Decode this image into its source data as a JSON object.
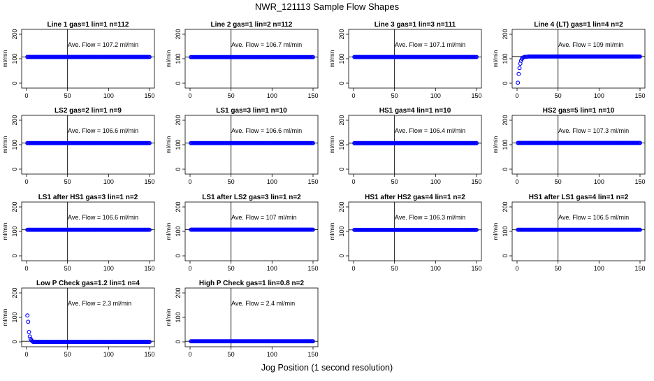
{
  "figure": {
    "title": "NWR_121113  Sample Flow Shapes",
    "xlabel": "Jog Position (1 second resolution)",
    "ylabel": "ml/min"
  },
  "chart_data": [
    {
      "type": "scatter",
      "title": "Line 1 gas=1 lin=1 n=112",
      "annotation": "Ave. Flow = 107.2  ml/min",
      "ref_value": 107.2,
      "xlim": [
        0,
        150
      ],
      "ylim": [
        0,
        200
      ],
      "xticks": [
        0,
        50,
        100,
        150
      ],
      "yticks": [
        0,
        100,
        200
      ],
      "vline": 50,
      "points": "flat",
      "color": "#0000ff"
    },
    {
      "type": "scatter",
      "title": "Line 2 gas=1 lin=2 n=112",
      "annotation": "Ave. Flow = 106.7  ml/min",
      "ref_value": 106.7,
      "xlim": [
        0,
        150
      ],
      "ylim": [
        0,
        200
      ],
      "xticks": [
        0,
        50,
        100,
        150
      ],
      "yticks": [
        0,
        100,
        200
      ],
      "vline": 50,
      "points": "flat",
      "color": "#0000ff"
    },
    {
      "type": "scatter",
      "title": "Line 3 gas=1 lin=3 n=111",
      "annotation": "Ave. Flow = 107.1  ml/min",
      "ref_value": 107.1,
      "xlim": [
        0,
        150
      ],
      "ylim": [
        0,
        200
      ],
      "xticks": [
        0,
        50,
        100,
        150
      ],
      "yticks": [
        0,
        100,
        200
      ],
      "vline": 50,
      "points": "flat",
      "color": "#0000ff"
    },
    {
      "type": "scatter",
      "title": "Line 4 (LT) gas=1 lin=4 n=2",
      "annotation": "Ave. Flow = 109  ml/min",
      "ref_value": 109,
      "xlim": [
        0,
        150
      ],
      "ylim": [
        0,
        200
      ],
      "xticks": [
        0,
        50,
        100,
        150
      ],
      "yticks": [
        0,
        100,
        200
      ],
      "vline": 50,
      "points": "rise",
      "early_points": [
        [
          1,
          2
        ],
        [
          2,
          38
        ],
        [
          3,
          62
        ],
        [
          4,
          80
        ],
        [
          5,
          92
        ],
        [
          6,
          100
        ],
        [
          7,
          104
        ],
        [
          8,
          106
        ],
        [
          9,
          107
        ],
        [
          10,
          108
        ],
        [
          12,
          108
        ],
        [
          14,
          109
        ]
      ],
      "color": "#0000ff"
    },
    {
      "type": "scatter",
      "title": "LS2 gas=2 lin=1 n=9",
      "annotation": "Ave. Flow = 106.6  ml/min",
      "ref_value": 106.6,
      "xlim": [
        0,
        150
      ],
      "ylim": [
        0,
        200
      ],
      "xticks": [
        0,
        50,
        100,
        150
      ],
      "yticks": [
        0,
        100,
        200
      ],
      "vline": 50,
      "points": "flat",
      "color": "#0000ff"
    },
    {
      "type": "scatter",
      "title": "LS1 gas=3 lin=1 n=10",
      "annotation": "Ave. Flow = 106.6  ml/min",
      "ref_value": 106.6,
      "xlim": [
        0,
        150
      ],
      "ylim": [
        0,
        200
      ],
      "xticks": [
        0,
        50,
        100,
        150
      ],
      "yticks": [
        0,
        100,
        200
      ],
      "vline": 50,
      "points": "flat",
      "color": "#0000ff"
    },
    {
      "type": "scatter",
      "title": "HS1 gas=4 lin=1 n=10",
      "annotation": "Ave. Flow = 106.4  ml/min",
      "ref_value": 106.4,
      "xlim": [
        0,
        150
      ],
      "ylim": [
        0,
        200
      ],
      "xticks": [
        0,
        50,
        100,
        150
      ],
      "yticks": [
        0,
        100,
        200
      ],
      "vline": 50,
      "points": "flat",
      "color": "#0000ff"
    },
    {
      "type": "scatter",
      "title": "HS2 gas=5 lin=1 n=10",
      "annotation": "Ave. Flow = 107.3  ml/min",
      "ref_value": 107.3,
      "xlim": [
        0,
        150
      ],
      "ylim": [
        0,
        200
      ],
      "xticks": [
        0,
        50,
        100,
        150
      ],
      "yticks": [
        0,
        100,
        200
      ],
      "vline": 50,
      "points": "flat",
      "color": "#0000ff"
    },
    {
      "type": "scatter",
      "title": "LS1 after HS1 gas=3 lin=1 n=2",
      "annotation": "Ave. Flow = 106.6  ml/min",
      "ref_value": 106.6,
      "xlim": [
        0,
        150
      ],
      "ylim": [
        0,
        200
      ],
      "xticks": [
        0,
        50,
        100,
        150
      ],
      "yticks": [
        0,
        100,
        200
      ],
      "vline": 50,
      "points": "flat",
      "color": "#0000ff"
    },
    {
      "type": "scatter",
      "title": "LS1 after LS2 gas=3 lin=1 n=2",
      "annotation": "Ave. Flow = 107  ml/min",
      "ref_value": 107,
      "xlim": [
        0,
        150
      ],
      "ylim": [
        0,
        200
      ],
      "xticks": [
        0,
        50,
        100,
        150
      ],
      "yticks": [
        0,
        100,
        200
      ],
      "vline": 50,
      "points": "flat",
      "color": "#0000ff"
    },
    {
      "type": "scatter",
      "title": "HS1 after HS2 gas=4 lin=1 n=2",
      "annotation": "Ave. Flow = 106.3  ml/min",
      "ref_value": 106.3,
      "xlim": [
        0,
        150
      ],
      "ylim": [
        0,
        200
      ],
      "xticks": [
        0,
        50,
        100,
        150
      ],
      "yticks": [
        0,
        100,
        200
      ],
      "vline": 50,
      "points": "flat",
      "color": "#0000ff"
    },
    {
      "type": "scatter",
      "title": "HS1 after LS1 gas=4 lin=1 n=2",
      "annotation": "Ave. Flow = 106.5  ml/min",
      "ref_value": 106.5,
      "xlim": [
        0,
        150
      ],
      "ylim": [
        0,
        200
      ],
      "xticks": [
        0,
        50,
        100,
        150
      ],
      "yticks": [
        0,
        100,
        200
      ],
      "vline": 50,
      "points": "flat",
      "color": "#0000ff"
    },
    {
      "type": "scatter",
      "title": "Low P Check gas=1.2 lin=1 n=4",
      "annotation": "Ave. Flow =  2.3  ml/min",
      "ref_value": 2.3,
      "xlim": [
        0,
        150
      ],
      "ylim": [
        0,
        200
      ],
      "xticks": [
        0,
        50,
        100,
        150
      ],
      "yticks": [
        0,
        100,
        200
      ],
      "vline": 50,
      "points": "decay",
      "early_points": [
        [
          1,
          108
        ],
        [
          2,
          82
        ],
        [
          3,
          40
        ],
        [
          4,
          22
        ],
        [
          5,
          12
        ],
        [
          6,
          6
        ],
        [
          7,
          3
        ]
      ],
      "color": "#0000ff"
    },
    {
      "type": "scatter",
      "title": "High P Check gas=1 lin=0.8 n=2",
      "annotation": "Ave. Flow =  2.4  ml/min",
      "ref_value": 2.4,
      "xlim": [
        0,
        150
      ],
      "ylim": [
        0,
        200
      ],
      "xticks": [
        0,
        50,
        100,
        150
      ],
      "yticks": [
        0,
        100,
        200
      ],
      "vline": 50,
      "points": "flat",
      "color": "#0000ff"
    }
  ]
}
